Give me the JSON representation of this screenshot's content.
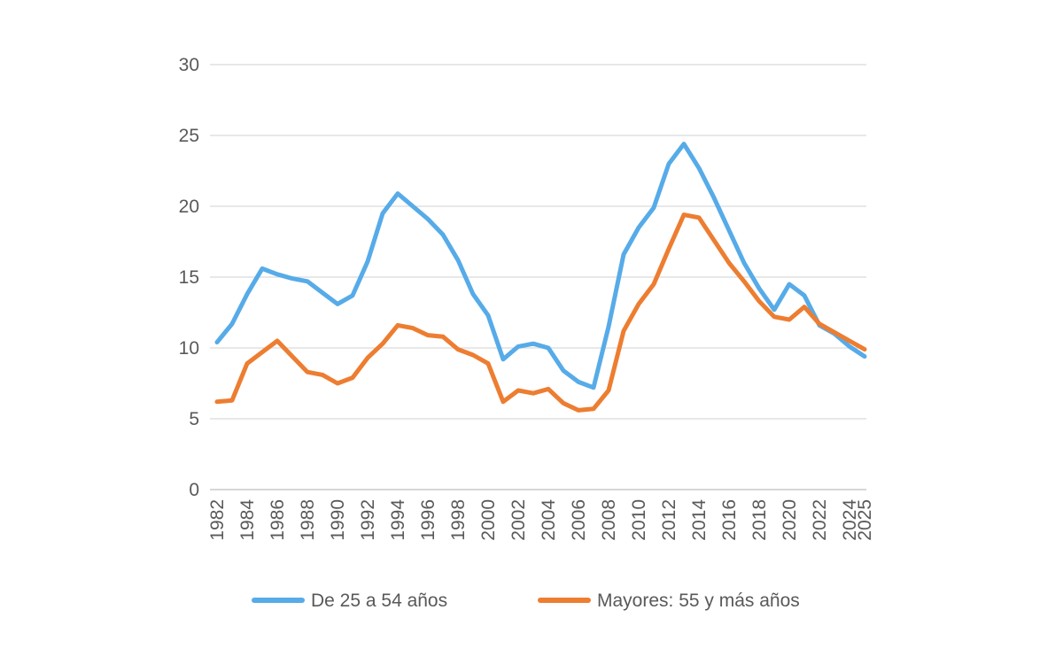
{
  "chart_data": {
    "type": "line",
    "title": "",
    "x_label": "",
    "y_label": "",
    "years": [
      1982,
      1983,
      1984,
      1985,
      1986,
      1987,
      1988,
      1989,
      1990,
      1991,
      1992,
      1993,
      1994,
      1995,
      1996,
      1997,
      1998,
      1999,
      2000,
      2001,
      2002,
      2003,
      2004,
      2005,
      2006,
      2007,
      2008,
      2009,
      2010,
      2011,
      2012,
      2013,
      2014,
      2015,
      2016,
      2017,
      2018,
      2019,
      2020,
      2021,
      2022,
      2023,
      2024,
      2025
    ],
    "series": [
      {
        "name": "De 25 a 54 años",
        "color": "#56ABE8",
        "values": [
          10.4,
          11.7,
          13.8,
          15.6,
          15.2,
          14.9,
          14.7,
          13.9,
          13.1,
          13.7,
          16.1,
          19.5,
          20.9,
          20.0,
          19.1,
          18.0,
          16.2,
          13.8,
          12.3,
          9.2,
          10.1,
          10.3,
          10.0,
          8.4,
          7.6,
          7.2,
          11.5,
          16.6,
          18.5,
          19.9,
          23.0,
          24.4,
          22.7,
          20.6,
          18.3,
          16.0,
          14.2,
          12.7,
          14.5,
          13.7,
          11.6,
          11.0,
          10.1,
          9.4
        ]
      },
      {
        "name": "Mayores: 55 y más años",
        "color": "#ED7D31",
        "values": [
          6.2,
          6.3,
          8.9,
          9.7,
          10.5,
          9.4,
          8.3,
          8.1,
          7.5,
          7.9,
          9.3,
          10.3,
          11.6,
          11.4,
          10.9,
          10.8,
          9.9,
          9.5,
          8.9,
          6.2,
          7.0,
          6.8,
          7.1,
          6.1,
          5.6,
          5.7,
          7.0,
          11.2,
          13.1,
          14.5,
          17.0,
          19.4,
          19.2,
          17.6,
          16.0,
          14.7,
          13.3,
          12.2,
          12.0,
          12.9,
          11.7,
          11.1,
          10.5,
          9.9
        ]
      }
    ],
    "y_axis": {
      "min": 0,
      "max": 30,
      "step": 5,
      "tick_labels": [
        "0",
        "5",
        "10",
        "15",
        "20",
        "25",
        "30"
      ]
    },
    "x_axis": {
      "tick_years": [
        1982,
        1984,
        1986,
        1988,
        1990,
        1992,
        1994,
        1996,
        1998,
        2000,
        2002,
        2004,
        2006,
        2008,
        2010,
        2012,
        2014,
        2016,
        2018,
        2020,
        2022,
        2024,
        2025
      ],
      "label_rotation_deg": -90
    },
    "legend": {
      "position": "bottom",
      "entries": [
        "De 25 a 54 años",
        "Mayores: 55 y más años"
      ]
    },
    "grid": true,
    "colors": {
      "background": "#FFFFFF",
      "gridline": "#D9D9D9",
      "baseline": "#BFBFBF",
      "axis_text": "#595959",
      "legend_text": "#595959"
    }
  }
}
